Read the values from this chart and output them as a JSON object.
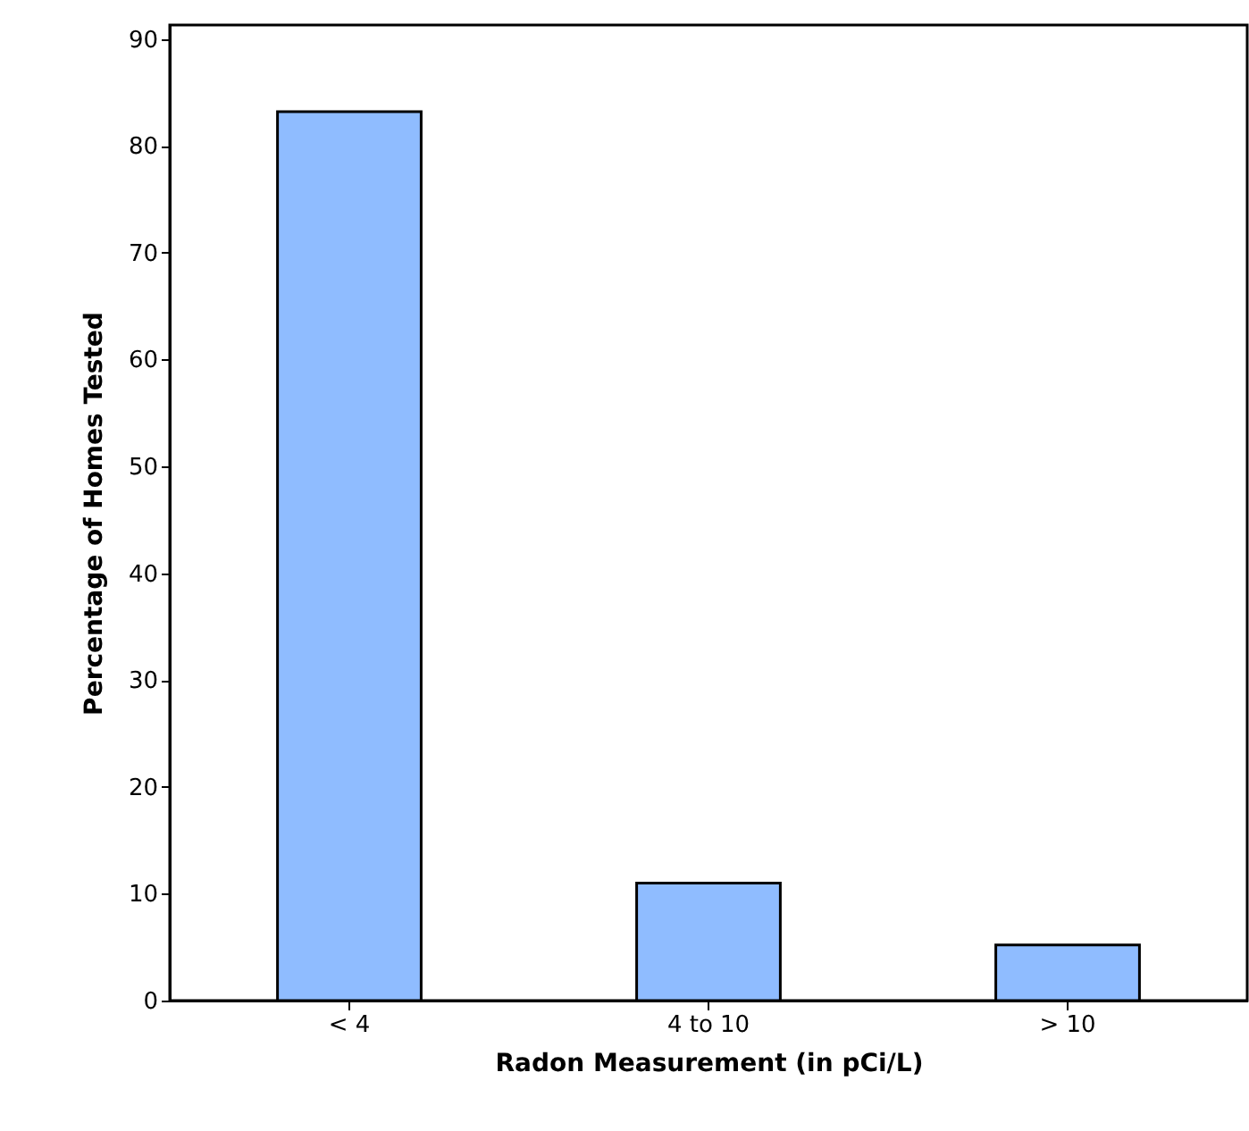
{
  "chart_data": {
    "type": "bar",
    "xlabel": "Radon Measurement (in pCi/L)",
    "ylabel": "Percentage of Homes Tested",
    "categories": [
      "< 4",
      "4 to 10",
      "> 10"
    ],
    "values": [
      83.2,
      11,
      5.2
    ],
    "color": "#8fbcff",
    "ylim": [
      0,
      91.3
    ],
    "yticks": [
      0,
      10,
      20,
      30,
      40,
      50,
      60,
      70,
      80,
      90
    ],
    "grid": false
  }
}
